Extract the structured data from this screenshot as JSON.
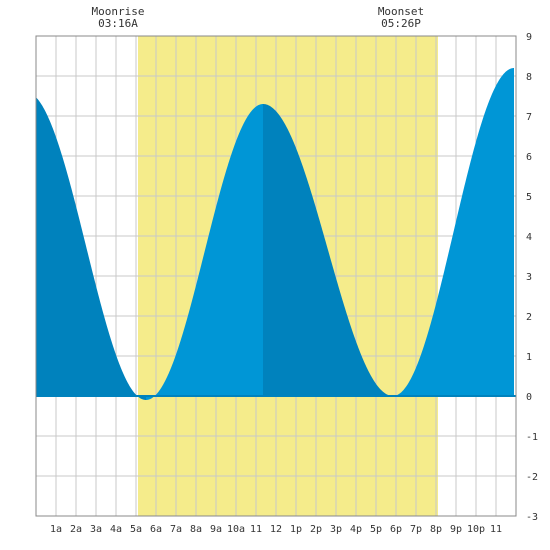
{
  "moon": {
    "rise": {
      "title": "Moonrise",
      "time": "03:16A"
    },
    "set": {
      "title": "Moonset",
      "time": "05:26P"
    }
  },
  "chart_data": {
    "type": "area",
    "title": "",
    "xlabel": "",
    "ylabel": "",
    "x_range_hours": [
      0,
      24
    ],
    "ylim": [
      -3,
      9
    ],
    "y_ticks": [
      -3,
      -2,
      -1,
      0,
      1,
      2,
      3,
      4,
      5,
      6,
      7,
      8,
      9
    ],
    "x_tick_labels": [
      "1a",
      "2a",
      "3a",
      "4a",
      "5a",
      "6a",
      "7a",
      "8a",
      "9a",
      "10a",
      "11",
      "12",
      "1p",
      "2p",
      "3p",
      "4p",
      "5p",
      "6p",
      "7p",
      "8p",
      "9p",
      "10p",
      "11"
    ],
    "x_tick_hours": [
      1,
      2,
      3,
      4,
      5,
      6,
      7,
      8,
      9,
      10,
      11,
      12,
      13,
      14,
      15,
      16,
      17,
      18,
      19,
      20,
      21,
      22,
      23
    ],
    "grid": true,
    "daylight_hours": [
      5.1,
      20.1
    ],
    "tide_extremes": [
      {
        "hour": -0.5,
        "height": 7.6,
        "kind": "high"
      },
      {
        "hour": 5.5,
        "height": -0.1,
        "kind": "low"
      },
      {
        "hour": 11.35,
        "height": 7.3,
        "kind": "high"
      },
      {
        "hour": 17.85,
        "height": 0.0,
        "kind": "low"
      },
      {
        "hour": 23.9,
        "height": 8.2,
        "kind": "high"
      }
    ],
    "colors": {
      "daylight": "#f5ec8b",
      "rising": "#0096d6",
      "falling": "#0082bd",
      "grid": "#c8c8c8",
      "frame": "#888888",
      "zero_line": "#0082bd"
    }
  }
}
